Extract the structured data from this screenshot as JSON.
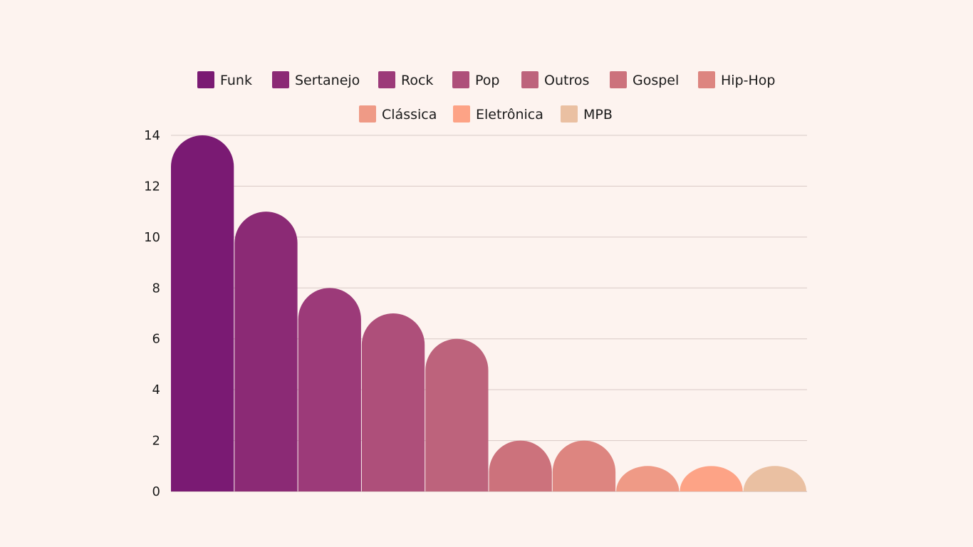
{
  "chart_data": {
    "type": "bar",
    "categories": [
      "Funk",
      "Sertanejo",
      "Rock",
      "Pop",
      "Outros",
      "Gospel",
      "Hip-Hop",
      "Clássica",
      "Eletrônica",
      "MPB"
    ],
    "values": [
      14,
      11,
      8,
      7,
      6,
      2,
      2,
      1,
      1,
      1
    ],
    "colors": [
      "#7a1a73",
      "#8b2a75",
      "#9c3a79",
      "#ae4f7a",
      "#bd637c",
      "#cc727c",
      "#dd8580",
      "#ef9a86",
      "#fda386",
      "#eac0a2"
    ],
    "legend": [
      "Funk",
      "Sertanejo",
      "Rock",
      "Pop",
      "Outros",
      "Gospel",
      "Hip-Hop",
      "Clássica",
      "Eletrônica",
      "MPB"
    ],
    "yticks": [
      "0",
      "2",
      "4",
      "6",
      "8",
      "10",
      "12",
      "14"
    ],
    "ylim": [
      0,
      14
    ],
    "grid": true,
    "legend_position": "top"
  }
}
